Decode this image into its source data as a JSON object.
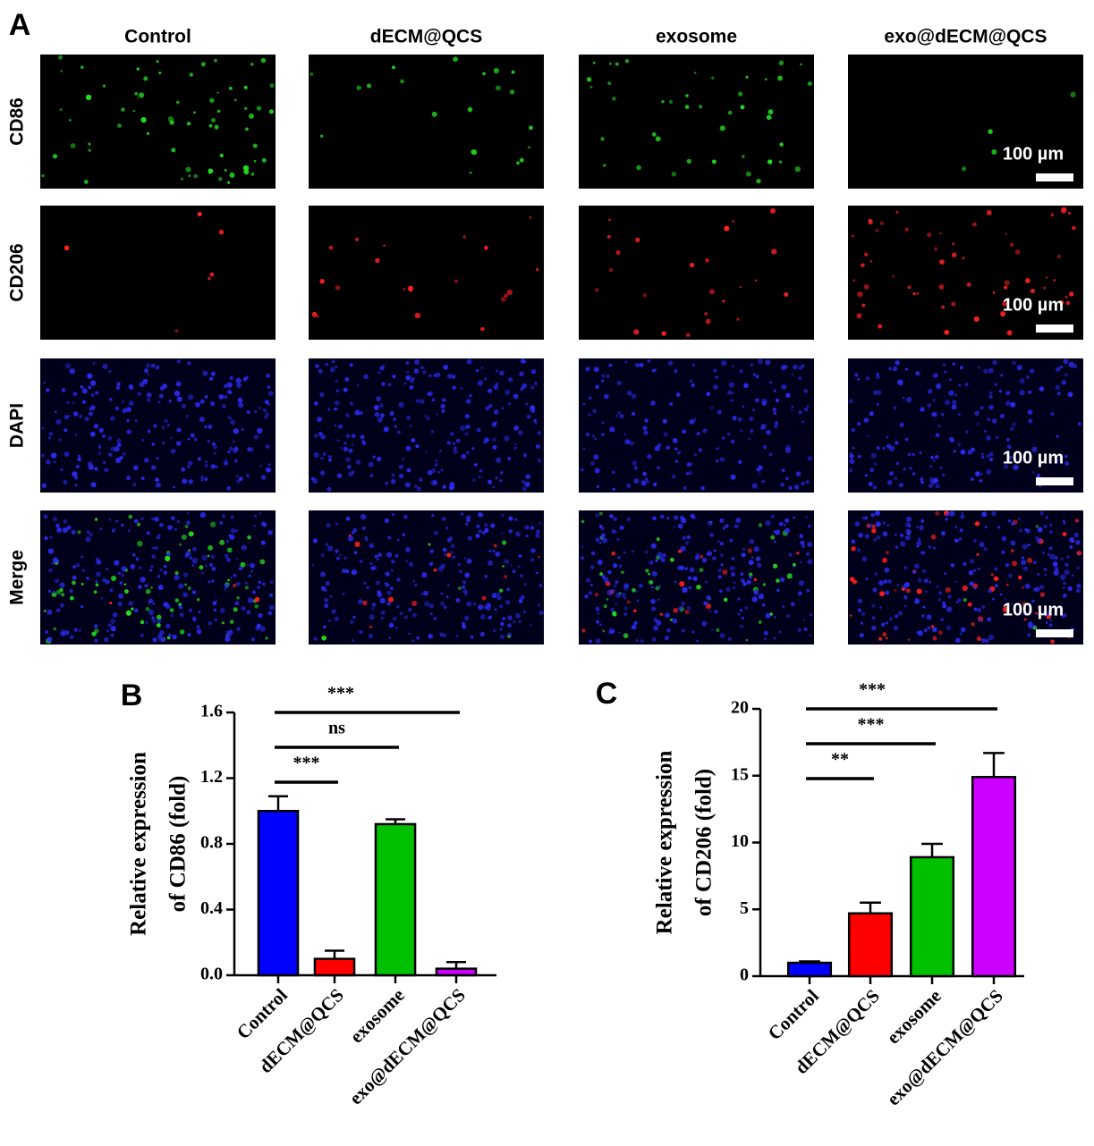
{
  "figure": {
    "panel_a": {
      "label": "A",
      "columns": [
        "Control",
        "dECM@QCS",
        "exosome",
        "exo@dECM@QCS"
      ],
      "rows": [
        "CD86",
        "CD206",
        "DAPI",
        "Merge"
      ],
      "scale_bar": "100 µm"
    }
  },
  "chart_data": [
    {
      "type": "bar",
      "label": "B",
      "ylabel": [
        "Relative expression",
        "of CD86 (fold)"
      ],
      "categories": [
        "Control",
        "dECM@QCS",
        "exosome",
        "exo@dECM@QCS"
      ],
      "values": [
        1.0,
        0.1,
        0.92,
        0.04
      ],
      "errors": [
        0.09,
        0.05,
        0.03,
        0.04
      ],
      "colors": [
        "#0000ff",
        "#ff0000",
        "#00c000",
        "#cc00ff"
      ],
      "ylim": [
        0,
        1.6
      ],
      "yticks": [
        {
          "value": 0,
          "label": "0.0"
        },
        0.4,
        0.8,
        1.2,
        1.6
      ],
      "significance": [
        {
          "label": "***",
          "between": [
            0,
            3
          ]
        },
        {
          "label": "ns",
          "between": [
            0,
            2
          ]
        },
        {
          "label": "***",
          "between": [
            0,
            1
          ]
        }
      ]
    },
    {
      "type": "bar",
      "label": "C",
      "ylabel": [
        "Relative expression",
        "of CD206 (fold)"
      ],
      "categories": [
        "Control",
        "dECM@QCS",
        "exosome",
        "exo@dECM@QCS"
      ],
      "values": [
        1.0,
        4.7,
        8.9,
        14.9
      ],
      "errors": [
        0.1,
        0.8,
        1.0,
        1.8
      ],
      "colors": [
        "#0000ff",
        "#ff0000",
        "#00c000",
        "#cc00ff"
      ],
      "ylim": [
        0,
        20
      ],
      "yticks": [
        0,
        5,
        10,
        15,
        20
      ],
      "significance": [
        {
          "label": "***",
          "between": [
            0,
            3
          ]
        },
        {
          "label": "***",
          "between": [
            0,
            2
          ]
        },
        {
          "label": "**",
          "between": [
            0,
            1
          ]
        }
      ]
    }
  ]
}
